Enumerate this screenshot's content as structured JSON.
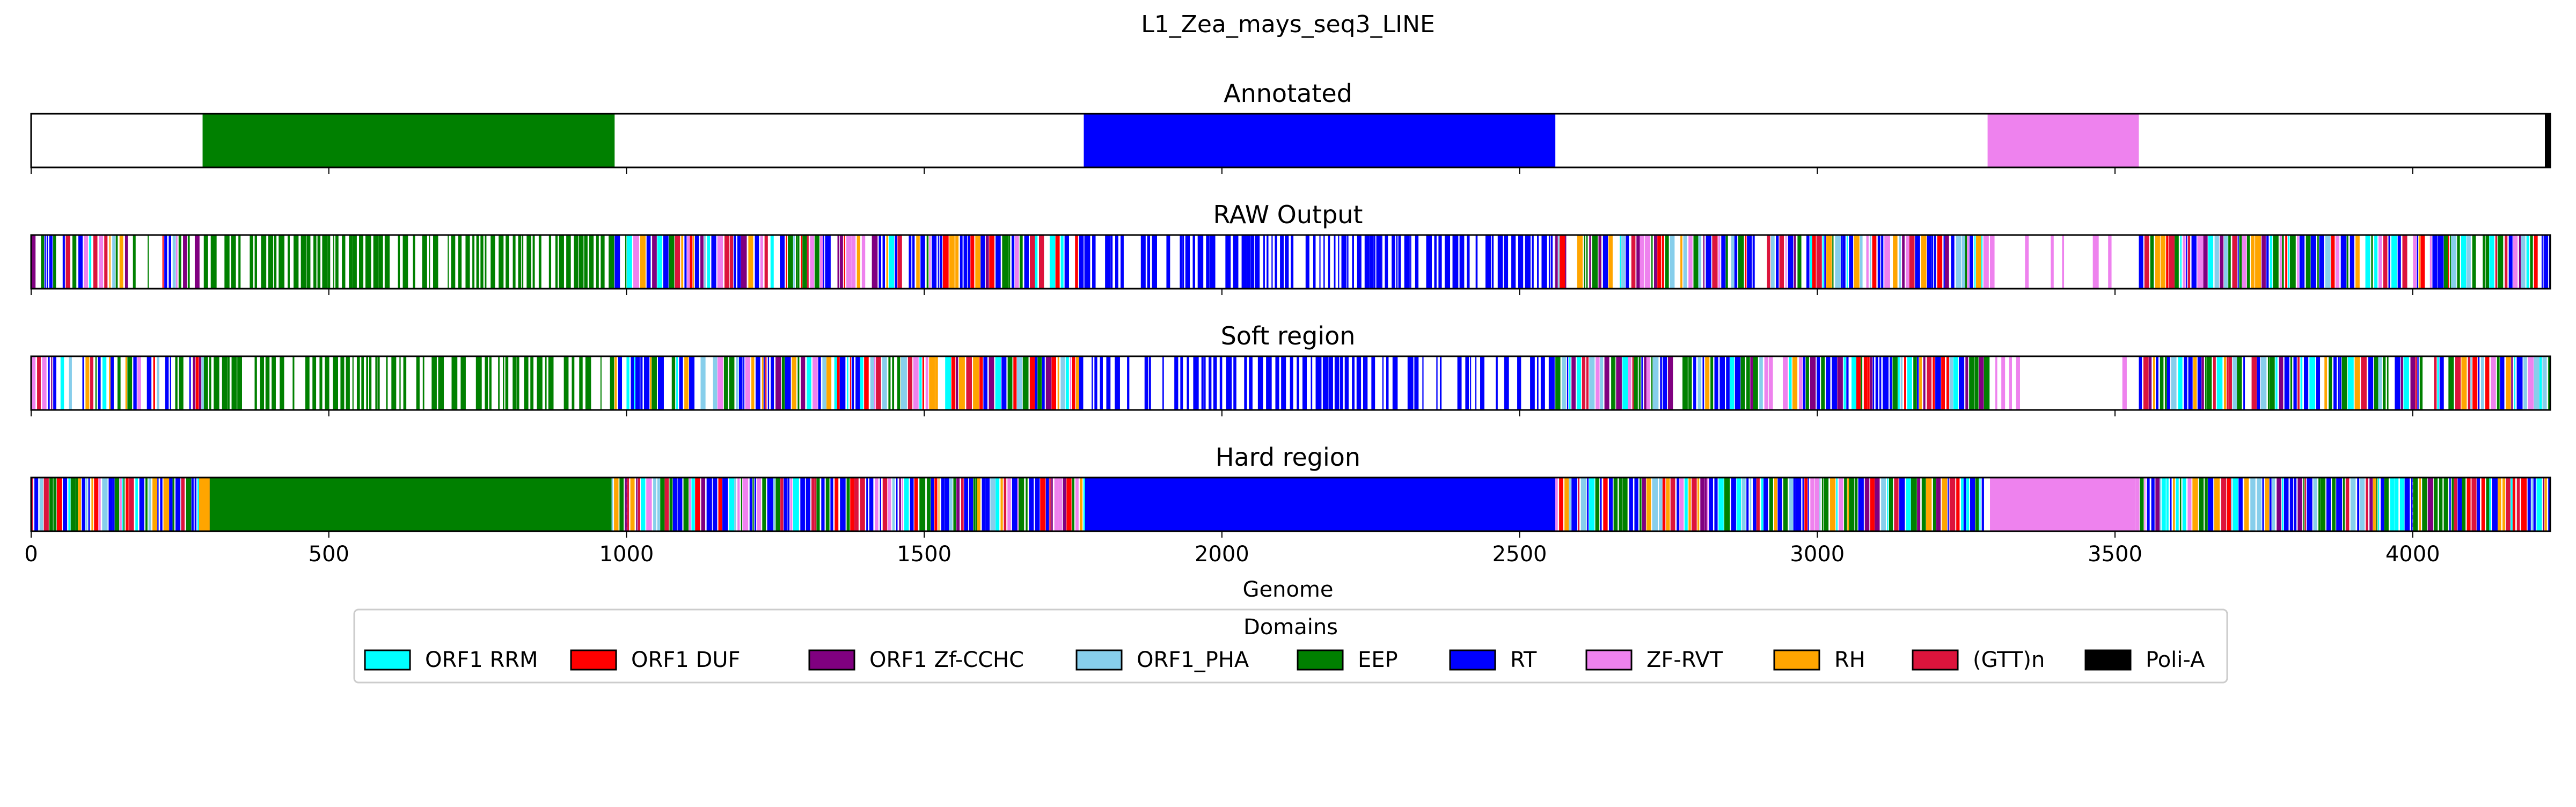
{
  "figure": {
    "title": "L1_Zea_mays_seq3_LINE"
  },
  "colors": {
    "ORF1 RRM": "#00FFFF",
    "ORF1 DUF": "#FF0000",
    "ORF1 Zf-CCHC": "#800080",
    "ORF1_PHA": "#87CEEB",
    "EEP": "#008000",
    "RT": "#0000FF",
    "ZF-RVT": "#EE82EE",
    "RH": "#FFA500",
    "(GTT)n": "#DC143C",
    "Poli-A": "#000000"
  },
  "chart_data": {
    "type": "genome-track",
    "title": "L1_Zea_mays_seq3_LINE",
    "xlabel": "Genome",
    "xlim": [
      0,
      4231
    ],
    "xticks": [
      0,
      500,
      1000,
      1500,
      2000,
      2500,
      3000,
      3500,
      4000
    ],
    "grid": "dashed vertical gridlines on the Hard region track",
    "tracks": [
      {
        "name": "Annotated",
        "segments": [
          {
            "domain": "EEP",
            "start": 288,
            "end": 980
          },
          {
            "domain": "RT",
            "start": 1768,
            "end": 2560
          },
          {
            "domain": "ZF-RVT",
            "start": 3286,
            "end": 3540
          },
          {
            "domain": "Poli-A",
            "start": 4222,
            "end": 4231
          }
        ]
      },
      {
        "name": "RAW Output",
        "segments": [
          {
            "domain": "EEP",
            "start": 290,
            "end": 980,
            "pattern": "stripes",
            "density": 0.8
          },
          {
            "domain": "EEP",
            "start": 980,
            "end": 1760,
            "pattern": "mixed",
            "density": 0.9
          },
          {
            "domain": "RT",
            "start": 1760,
            "end": 2560,
            "pattern": "stripes",
            "density": 0.82
          },
          {
            "domain": "RT",
            "start": 2560,
            "end": 3290,
            "pattern": "mixed",
            "density": 0.92
          },
          {
            "domain": "ZF-RVT",
            "start": 3290,
            "end": 3540,
            "pattern": "stripes",
            "density": 0.25
          },
          {
            "domain": "RT",
            "start": 3540,
            "end": 4231,
            "pattern": "mixed",
            "density": 0.95
          }
        ]
      },
      {
        "name": "Soft region",
        "segments": [
          {
            "domain": "EEP",
            "start": 290,
            "end": 980,
            "pattern": "stripes",
            "density": 0.78
          },
          {
            "domain": "EEP",
            "start": 980,
            "end": 1760,
            "pattern": "mixed",
            "density": 0.9
          },
          {
            "domain": "RT",
            "start": 1760,
            "end": 2560,
            "pattern": "stripes",
            "density": 0.85
          },
          {
            "domain": "RT",
            "start": 2560,
            "end": 3290,
            "pattern": "mixed",
            "density": 0.92
          },
          {
            "domain": "ZF-RVT",
            "start": 3290,
            "end": 3540,
            "pattern": "stripes",
            "density": 0.22
          },
          {
            "domain": "RT",
            "start": 3540,
            "end": 4231,
            "pattern": "mixed",
            "density": 0.95
          }
        ]
      },
      {
        "name": "Hard region",
        "segments": [
          {
            "domain": "EEP",
            "start": 0,
            "end": 300,
            "pattern": "mixed",
            "density": 1.0
          },
          {
            "domain": "RH",
            "start": 282,
            "end": 300,
            "pattern": "solid"
          },
          {
            "domain": "EEP",
            "start": 300,
            "end": 975,
            "pattern": "solid"
          },
          {
            "domain": "RT",
            "start": 975,
            "end": 1770,
            "pattern": "mixed",
            "density": 1.0
          },
          {
            "domain": "RT",
            "start": 1770,
            "end": 2560,
            "pattern": "solid"
          },
          {
            "domain": "RT",
            "start": 2560,
            "end": 3280,
            "pattern": "mixed",
            "density": 1.0
          },
          {
            "domain": "ZF-RVT",
            "start": 3290,
            "end": 3535,
            "pattern": "solid"
          },
          {
            "domain": "RT",
            "start": 3535,
            "end": 4231,
            "pattern": "mixed",
            "density": 1.0
          }
        ]
      }
    ],
    "legend": {
      "title": "Domains",
      "placement": "bottom-center",
      "entries": [
        "ORF1 RRM",
        "ORF1 DUF",
        "ORF1 Zf-CCHC",
        "ORF1_PHA",
        "EEP",
        "RT",
        "ZF-RVT",
        "RH",
        "(GTT)n",
        "Poli-A"
      ]
    }
  }
}
